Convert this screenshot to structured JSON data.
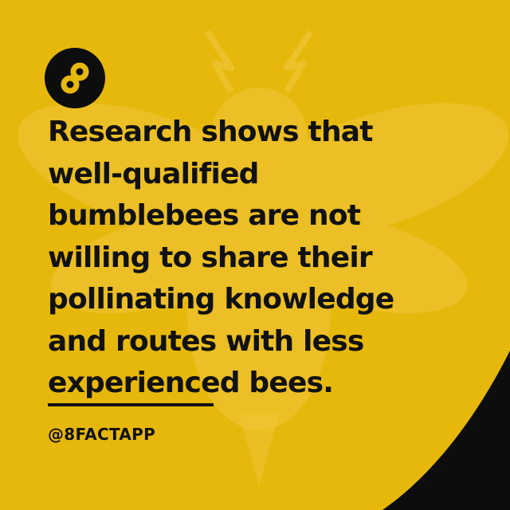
{
  "brand": {
    "logo_icon": "infinity-eight-icon",
    "handle": "@8FACTAPP"
  },
  "fact": {
    "lines": [
      "Research shows that",
      "well-qualified",
      "bumblebees are not",
      "willing to share their",
      "pollinating knowledge",
      "and routes with less",
      "experienced bees."
    ]
  },
  "colors": {
    "background": "#e6b80c",
    "text": "#111111",
    "accent_dark": "#0d0d0d"
  },
  "watermark": {
    "icon": "bee-icon"
  }
}
